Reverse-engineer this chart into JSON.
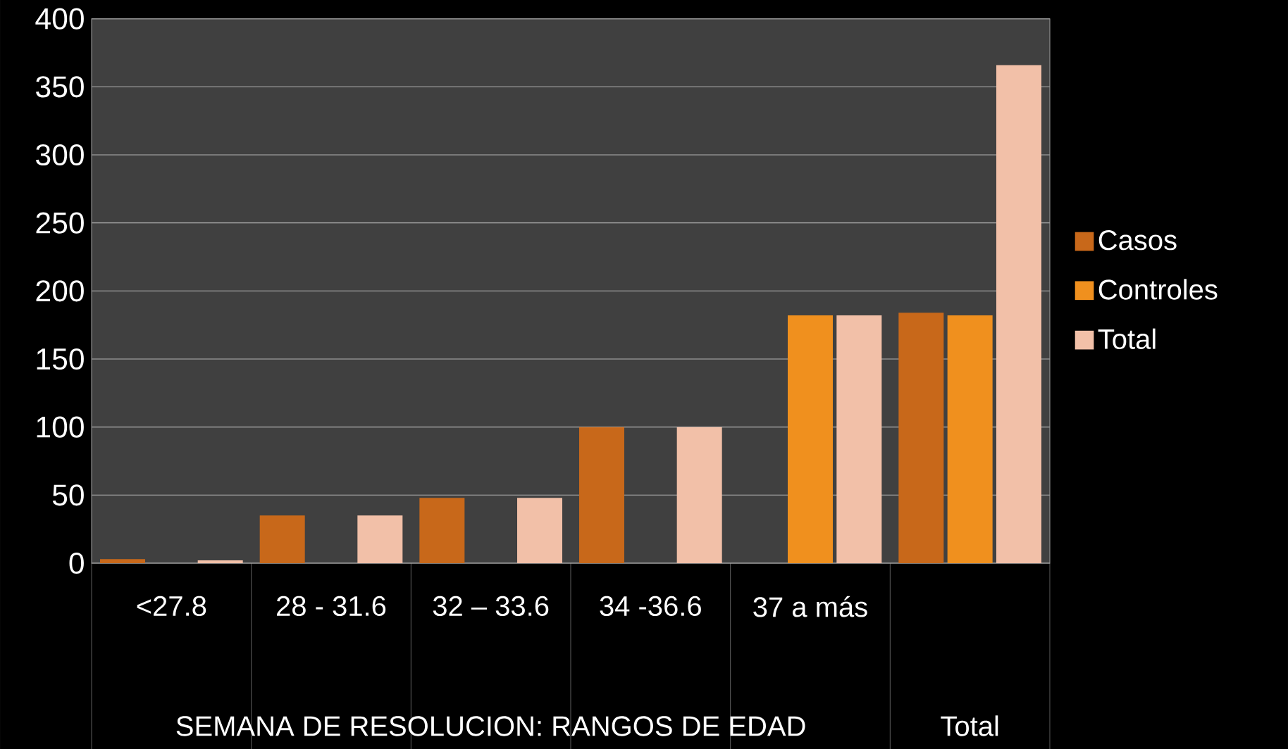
{
  "chart_data": {
    "type": "bar",
    "categories": [
      "<27.8",
      "28 - 31.6",
      "32 – 33.6",
      "34 -36.6",
      "37 a más",
      null
    ],
    "series": [
      {
        "name": "Casos",
        "color": "#c8681a",
        "values": [
          3,
          35,
          48,
          100,
          null,
          184
        ]
      },
      {
        "name": "Controles",
        "color": "#f0901e",
        "values": [
          null,
          null,
          null,
          null,
          182,
          182
        ]
      },
      {
        "name": "Total",
        "color": "#f2c0a8",
        "values": [
          2,
          35,
          48,
          100,
          182,
          366
        ]
      }
    ],
    "ylim": [
      0,
      400
    ],
    "yticks": [
      0,
      50,
      100,
      150,
      200,
      250,
      300,
      350,
      400
    ],
    "grid": "y",
    "legend": "right",
    "annotations": [
      "SEMANA DE RESOLUCION: RANGOS DE EDAD",
      "Total"
    ]
  }
}
